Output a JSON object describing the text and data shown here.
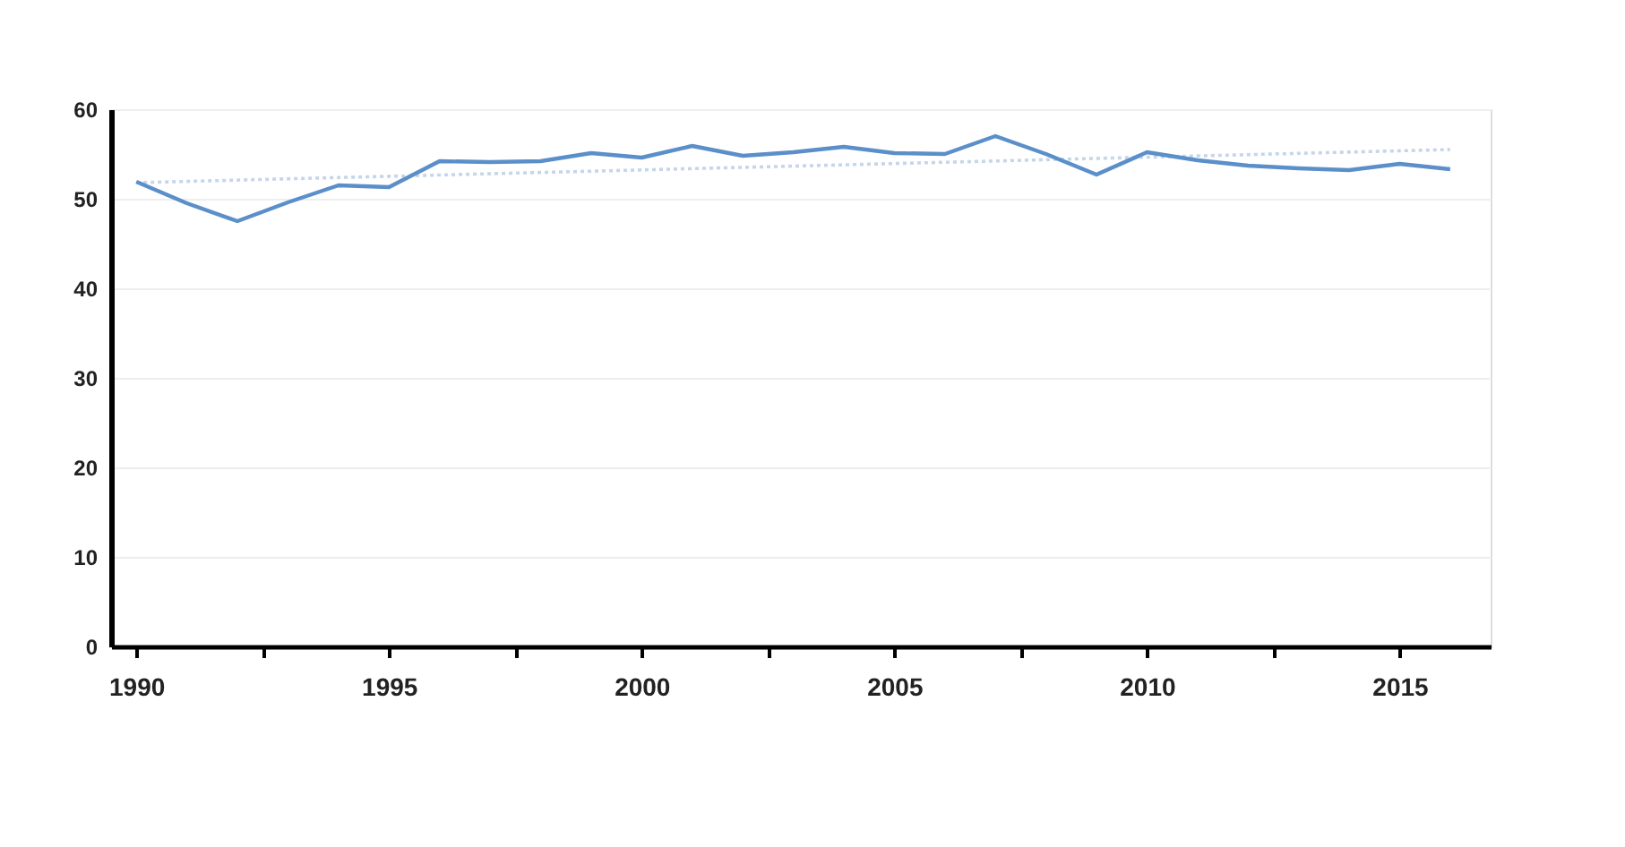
{
  "chart_data": {
    "type": "line",
    "x": [
      1990,
      1991,
      1992,
      1993,
      1994,
      1995,
      1996,
      1997,
      1998,
      1999,
      2000,
      2001,
      2002,
      2003,
      2004,
      2005,
      2006,
      2007,
      2008,
      2009,
      2010,
      2011,
      2012,
      2013,
      2014,
      2015,
      2016
    ],
    "series": [
      {
        "color": "#5b8fc9",
        "line_style": "solid",
        "values": [
          51.9,
          49.5,
          47.5,
          49.6,
          51.5,
          51.3,
          54.2,
          54.1,
          54.2,
          55.1,
          54.6,
          55.9,
          54.8,
          55.2,
          55.8,
          55.1,
          55.0,
          57.0,
          55.0,
          52.7,
          55.2,
          54.3,
          53.7,
          53.4,
          53.2,
          53.9,
          53.3
        ]
      },
      {
        "type": "line",
        "color": "#c5d6ea",
        "line_style": "dotted",
        "x": [
          1990,
          2016
        ],
        "values": [
          51.8,
          55.5
        ]
      }
    ],
    "xlim": [
      1989.5,
      2016.8
    ],
    "xticks": [
      1990,
      {
        "value": 1992.5,
        "label": null
      },
      1995,
      {
        "value": 1997.5,
        "label": null
      },
      2000,
      {
        "value": 2002.5,
        "label": null
      },
      2005,
      {
        "value": 2007.5,
        "label": null
      },
      2010,
      {
        "value": 2012.5,
        "label": null
      },
      2015
    ],
    "ylim": [
      0,
      60
    ],
    "yticks": [
      0,
      10,
      20,
      30,
      40,
      50,
      60
    ],
    "grid": "y",
    "marker": "none"
  }
}
